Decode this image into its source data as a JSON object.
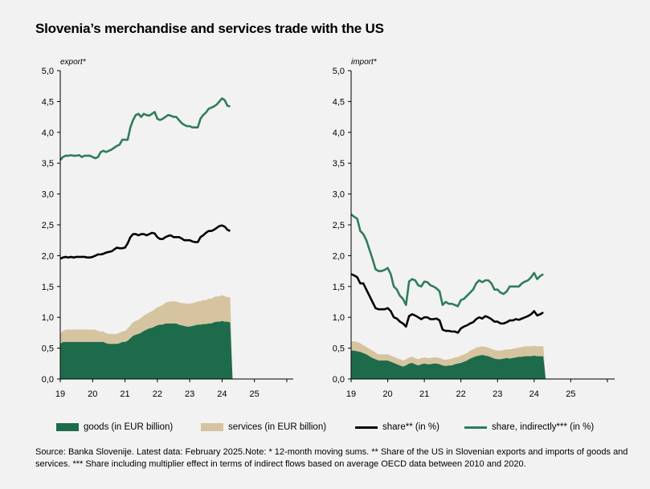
{
  "title": "Slovenia’s merchandise and services trade with the US",
  "colors": {
    "goods": "#1e6b4b",
    "services": "#d6c4a0",
    "share": "#000000",
    "share_indirect": "#2e7d5a",
    "axis": "#000000"
  },
  "legend": {
    "goods": "goods (in EUR billion)",
    "services": "services (in EUR billion)",
    "share": "share** (in %)",
    "share_indirect": "share, indirectly*** (in %)"
  },
  "source": "Source: Banka Slovenije. Latest data: February 2025.Note: * 12-month moving sums. ** Share of the US in Slovenian exports and imports of goods and services. *** Share including multiplier effect in terms of indirect flows based on average OECD data between 2010 and 2020.",
  "chart_data": [
    {
      "type": "area",
      "panel_label": "export*",
      "x_start": 2019.0,
      "x_step": 0.0833333,
      "xlim": [
        2019,
        2026.2
      ],
      "ylim": [
        0,
        5
      ],
      "yticks": [
        "0,0",
        "0,5",
        "1,0",
        "1,5",
        "2,0",
        "2,5",
        "3,0",
        "3,5",
        "4,0",
        "4,5",
        "5,0"
      ],
      "xticks": [
        "19",
        "20",
        "21",
        "22",
        "23",
        "24",
        "25"
      ],
      "series": [
        {
          "name": "goods (in EUR billion)",
          "kind": "area",
          "values": [
            0.57,
            0.6,
            0.6,
            0.6,
            0.6,
            0.6,
            0.6,
            0.6,
            0.6,
            0.6,
            0.6,
            0.6,
            0.6,
            0.6,
            0.6,
            0.6,
            0.6,
            0.58,
            0.57,
            0.57,
            0.57,
            0.57,
            0.58,
            0.6,
            0.6,
            0.62,
            0.66,
            0.7,
            0.72,
            0.73,
            0.75,
            0.78,
            0.8,
            0.82,
            0.83,
            0.85,
            0.87,
            0.88,
            0.88,
            0.9,
            0.9,
            0.9,
            0.9,
            0.9,
            0.88,
            0.87,
            0.86,
            0.85,
            0.85,
            0.86,
            0.87,
            0.88,
            0.88,
            0.89,
            0.89,
            0.9,
            0.9,
            0.92,
            0.93,
            0.93,
            0.94,
            0.93,
            0.93,
            0.92
          ]
        },
        {
          "name": "services (in EUR billion)",
          "kind": "stack",
          "values": [
            0.17,
            0.18,
            0.2,
            0.2,
            0.2,
            0.2,
            0.2,
            0.2,
            0.2,
            0.2,
            0.2,
            0.2,
            0.2,
            0.2,
            0.18,
            0.17,
            0.17,
            0.16,
            0.16,
            0.16,
            0.16,
            0.16,
            0.17,
            0.17,
            0.18,
            0.2,
            0.21,
            0.22,
            0.22,
            0.23,
            0.24,
            0.25,
            0.25,
            0.26,
            0.27,
            0.28,
            0.29,
            0.3,
            0.32,
            0.34,
            0.35,
            0.36,
            0.36,
            0.36,
            0.36,
            0.36,
            0.37,
            0.37,
            0.37,
            0.37,
            0.37,
            0.38,
            0.38,
            0.39,
            0.39,
            0.4,
            0.4,
            0.41,
            0.41,
            0.41,
            0.42,
            0.41,
            0.4,
            0.4
          ]
        },
        {
          "name": "share** (in %)",
          "kind": "line",
          "values": [
            1.95,
            1.97,
            1.98,
            1.97,
            1.98,
            1.97,
            1.98,
            1.98,
            1.98,
            1.98,
            1.97,
            1.97,
            1.98,
            2.0,
            2.02,
            2.02,
            2.03,
            2.05,
            2.06,
            2.07,
            2.1,
            2.13,
            2.12,
            2.12,
            2.13,
            2.2,
            2.3,
            2.35,
            2.35,
            2.33,
            2.35,
            2.35,
            2.33,
            2.35,
            2.37,
            2.36,
            2.3,
            2.27,
            2.27,
            2.3,
            2.32,
            2.33,
            2.3,
            2.3,
            2.3,
            2.28,
            2.25,
            2.25,
            2.25,
            2.23,
            2.22,
            2.22,
            2.3,
            2.33,
            2.37,
            2.4,
            2.4,
            2.42,
            2.45,
            2.48,
            2.49,
            2.47,
            2.42,
            2.4
          ]
        },
        {
          "name": "share, indirectly*** (in %)",
          "kind": "line",
          "values": [
            3.55,
            3.6,
            3.62,
            3.62,
            3.63,
            3.62,
            3.62,
            3.63,
            3.6,
            3.62,
            3.62,
            3.62,
            3.6,
            3.58,
            3.6,
            3.68,
            3.7,
            3.68,
            3.7,
            3.72,
            3.75,
            3.78,
            3.8,
            3.88,
            3.88,
            3.88,
            4.08,
            4.2,
            4.28,
            4.3,
            4.25,
            4.3,
            4.28,
            4.27,
            4.3,
            4.33,
            4.22,
            4.2,
            4.22,
            4.25,
            4.28,
            4.27,
            4.25,
            4.25,
            4.2,
            4.15,
            4.12,
            4.1,
            4.1,
            4.08,
            4.08,
            4.08,
            4.22,
            4.28,
            4.32,
            4.38,
            4.4,
            4.42,
            4.45,
            4.5,
            4.55,
            4.52,
            4.43,
            4.42
          ]
        }
      ]
    },
    {
      "type": "area",
      "panel_label": "import*",
      "x_start": 2019.0,
      "x_step": 0.0833333,
      "xlim": [
        2019,
        2026.2
      ],
      "ylim": [
        0,
        5
      ],
      "yticks": [
        "0,0",
        "0,5",
        "1,0",
        "1,5",
        "2,0",
        "2,5",
        "3,0",
        "3,5",
        "4,0",
        "4,5",
        "5,0"
      ],
      "xticks": [
        "19",
        "20",
        "21",
        "22",
        "23",
        "24",
        "25"
      ],
      "series": [
        {
          "name": "goods (in EUR billion)",
          "kind": "area",
          "values": [
            0.46,
            0.46,
            0.45,
            0.44,
            0.42,
            0.4,
            0.37,
            0.34,
            0.32,
            0.3,
            0.3,
            0.3,
            0.3,
            0.28,
            0.26,
            0.24,
            0.22,
            0.2,
            0.22,
            0.25,
            0.26,
            0.24,
            0.22,
            0.24,
            0.25,
            0.24,
            0.24,
            0.25,
            0.25,
            0.24,
            0.22,
            0.21,
            0.22,
            0.22,
            0.24,
            0.25,
            0.26,
            0.28,
            0.3,
            0.33,
            0.35,
            0.37,
            0.38,
            0.39,
            0.38,
            0.37,
            0.35,
            0.33,
            0.32,
            0.32,
            0.33,
            0.34,
            0.33,
            0.34,
            0.35,
            0.36,
            0.36,
            0.37,
            0.37,
            0.37,
            0.38,
            0.37,
            0.37,
            0.37
          ]
        },
        {
          "name": "services (in EUR billion)",
          "kind": "stack",
          "values": [
            0.15,
            0.15,
            0.15,
            0.14,
            0.13,
            0.12,
            0.12,
            0.12,
            0.11,
            0.1,
            0.1,
            0.1,
            0.1,
            0.1,
            0.1,
            0.1,
            0.1,
            0.1,
            0.1,
            0.1,
            0.1,
            0.1,
            0.1,
            0.1,
            0.1,
            0.1,
            0.1,
            0.1,
            0.1,
            0.1,
            0.1,
            0.1,
            0.1,
            0.11,
            0.11,
            0.11,
            0.12,
            0.12,
            0.12,
            0.13,
            0.13,
            0.14,
            0.14,
            0.14,
            0.14,
            0.14,
            0.14,
            0.14,
            0.14,
            0.14,
            0.14,
            0.14,
            0.15,
            0.15,
            0.15,
            0.15,
            0.16,
            0.16,
            0.16,
            0.16,
            0.16,
            0.16,
            0.16,
            0.16
          ]
        },
        {
          "name": "share** (in %)",
          "kind": "line",
          "values": [
            1.7,
            1.68,
            1.65,
            1.55,
            1.55,
            1.45,
            1.35,
            1.25,
            1.15,
            1.13,
            1.13,
            1.13,
            1.15,
            1.1,
            1.0,
            0.98,
            0.93,
            0.9,
            0.85,
            1.02,
            1.05,
            1.03,
            1.0,
            0.97,
            1.0,
            1.0,
            0.97,
            0.97,
            0.98,
            0.95,
            0.8,
            0.78,
            0.78,
            0.77,
            0.77,
            0.75,
            0.82,
            0.85,
            0.87,
            0.9,
            0.92,
            0.97,
            1.0,
            0.98,
            1.02,
            1.0,
            0.97,
            0.93,
            0.93,
            0.9,
            0.9,
            0.92,
            0.95,
            0.95,
            0.97,
            0.96,
            0.98,
            1.0,
            1.02,
            1.05,
            1.1,
            1.03,
            1.05,
            1.08
          ]
        },
        {
          "name": "share, indirectly*** (in %)",
          "kind": "line",
          "values": [
            2.67,
            2.63,
            2.6,
            2.4,
            2.35,
            2.25,
            2.1,
            1.95,
            1.78,
            1.75,
            1.75,
            1.77,
            1.8,
            1.7,
            1.5,
            1.45,
            1.35,
            1.3,
            1.2,
            1.58,
            1.62,
            1.6,
            1.52,
            1.5,
            1.58,
            1.57,
            1.52,
            1.5,
            1.47,
            1.42,
            1.2,
            1.25,
            1.22,
            1.22,
            1.2,
            1.18,
            1.28,
            1.3,
            1.35,
            1.4,
            1.45,
            1.55,
            1.6,
            1.57,
            1.6,
            1.6,
            1.55,
            1.45,
            1.45,
            1.4,
            1.38,
            1.42,
            1.5,
            1.5,
            1.5,
            1.5,
            1.55,
            1.58,
            1.6,
            1.65,
            1.72,
            1.62,
            1.67,
            1.7
          ]
        }
      ]
    }
  ]
}
